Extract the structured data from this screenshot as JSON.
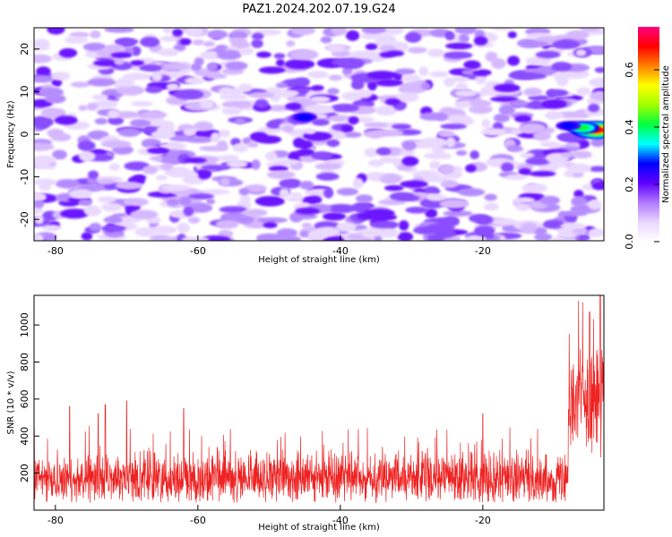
{
  "title": "PAZ1.2024.202.07.19.G24",
  "chart_data": [
    {
      "type": "heatmap",
      "name": "spectrogram",
      "xlabel": "Height of straight line (km)",
      "ylabel": "Frequency (Hz)",
      "xlim": [
        -83,
        -3
      ],
      "ylim": [
        -25,
        25
      ],
      "xticks": [
        -80,
        -60,
        -40,
        -20
      ],
      "yticks": [
        20,
        10,
        0,
        -10,
        -20
      ],
      "colorbar": {
        "label": "Normalized spectral amplitude",
        "range": [
          0.0,
          0.75
        ],
        "ticks": [
          0.0,
          0.2,
          0.4,
          0.6
        ],
        "colors": [
          "#ffffff",
          "#e9d6ff",
          "#b07aff",
          "#6000ff",
          "#0000ff",
          "#00ffff",
          "#00ff40",
          "#a0ff00",
          "#ffff00",
          "#ff8000",
          "#ff0000",
          "#ff0080"
        ]
      },
      "features": [
        {
          "x": -4,
          "y": 1,
          "value": 0.72
        },
        {
          "x": -6,
          "y": 1.5,
          "value": 0.45
        },
        {
          "x": -8,
          "y": 2,
          "value": 0.25
        },
        {
          "x": -45,
          "y": 4,
          "value": 0.25
        }
      ],
      "background_level": 0.1,
      "grid": false
    },
    {
      "type": "line",
      "name": "snr",
      "xlabel": "Height of straight line (km)",
      "ylabel": "SNR (10 * v/v)",
      "xlim": [
        -83,
        -3
      ],
      "ylim": [
        0,
        1160
      ],
      "xticks": [
        -80,
        -60,
        -40,
        -20
      ],
      "yticks": [
        200,
        400,
        600,
        800,
        1000
      ],
      "color": "#ee2222",
      "series": [
        {
          "x_range": [
            -83,
            -8
          ],
          "mean": 170,
          "spread": 110,
          "peaks": [
            {
              "x": -83,
              "y": 440
            },
            {
              "x": -78,
              "y": 560
            },
            {
              "x": -74,
              "y": 520
            },
            {
              "x": -73,
              "y": 570
            },
            {
              "x": -70,
              "y": 590
            },
            {
              "x": -62,
              "y": 550
            },
            {
              "x": -20,
              "y": 520
            }
          ]
        },
        {
          "x_range": [
            -8,
            -3
          ],
          "mean": 620,
          "spread": 240,
          "peaks": [
            {
              "x": -5,
              "y": 1070
            },
            {
              "x": -3.5,
              "y": 1160
            }
          ]
        }
      ],
      "grid": false
    }
  ]
}
